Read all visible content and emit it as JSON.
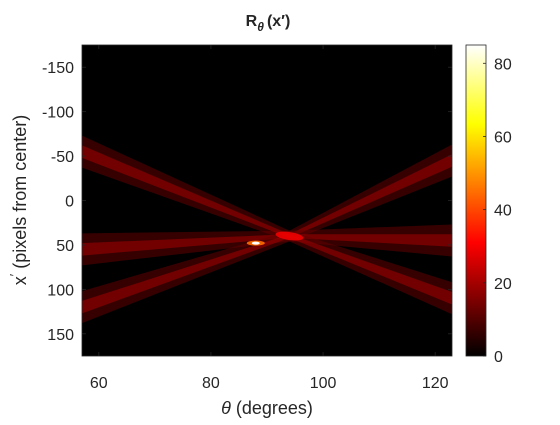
{
  "chart_data": {
    "type": "heatmap",
    "title": {
      "base": "R",
      "sub": "θ",
      "arg": "(x′)"
    },
    "xlabel": {
      "symbol": "θ",
      "rest": " (degrees)"
    },
    "ylabel": {
      "base": "x",
      "prime": "′",
      "rest": " (pixels from center)"
    },
    "xlim": [
      57,
      123
    ],
    "ylim": [
      -175,
      175
    ],
    "y_reversed": true,
    "xticks": [
      60,
      80,
      100,
      120
    ],
    "yticks": [
      -150,
      -100,
      -50,
      0,
      50,
      100,
      150
    ],
    "colormap": "hot",
    "colorbar": {
      "range": [
        0,
        85
      ],
      "ticks": [
        0,
        20,
        40,
        60,
        80
      ]
    },
    "features": {
      "crossing_point": {
        "theta": 94,
        "x": 40,
        "value": 30
      },
      "peak": {
        "theta": 88,
        "x": 48,
        "value": 85
      },
      "band_1": {
        "theta_start": 57,
        "x_start": 55,
        "theta_end": 123,
        "x_end": -45
      },
      "band_2": {
        "theta_start": 57,
        "x_start": 120,
        "theta_end": 123,
        "x_end": 45
      },
      "band_3": {
        "theta_start": 57,
        "x_start": -55,
        "theta_end": 123,
        "x_end": 110
      }
    }
  }
}
